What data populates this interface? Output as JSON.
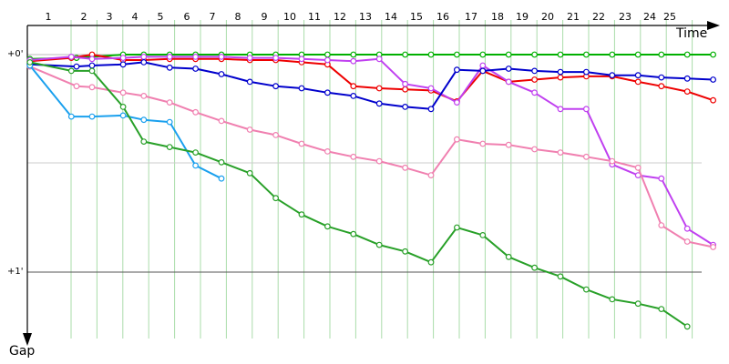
{
  "chart_data": {
    "type": "line",
    "title": "",
    "xlabel": "Time",
    "ylabel": "Gap",
    "x_ticks": [
      "1",
      "2",
      "3",
      "4",
      "5",
      "6",
      "7",
      "8",
      "9",
      "10",
      "11",
      "12",
      "13",
      "14",
      "15",
      "16",
      "17",
      "18",
      "19",
      "20",
      "21",
      "22",
      "23",
      "24",
      "25"
    ],
    "y_ticks": [
      "+0'",
      "+1'"
    ],
    "ylim": [
      0,
      1.25
    ],
    "grid": true,
    "legend": "none",
    "lap_grid_color": "#aadcaa",
    "series": [
      {
        "color": "#00b000",
        "points": [
          [
            0.1,
            0.02
          ],
          [
            1.9,
            0.015
          ],
          [
            3.7,
            0.0
          ],
          [
            4.5,
            0.0
          ],
          [
            5.5,
            0.0
          ],
          [
            6.5,
            0.0
          ],
          [
            7.5,
            0.0
          ],
          [
            8.6,
            0.0
          ],
          [
            9.6,
            0.0
          ],
          [
            10.6,
            0.0
          ],
          [
            11.6,
            0.0
          ],
          [
            12.6,
            0.0
          ],
          [
            13.6,
            0.0
          ],
          [
            14.6,
            0.0
          ],
          [
            15.6,
            0.0
          ],
          [
            16.6,
            0.0
          ],
          [
            17.6,
            0.0
          ],
          [
            18.6,
            0.0
          ],
          [
            19.6,
            0.0
          ],
          [
            20.6,
            0.0
          ],
          [
            21.6,
            0.0
          ],
          [
            22.6,
            0.0
          ],
          [
            23.6,
            0.0
          ],
          [
            24.5,
            0.0
          ],
          [
            25.5,
            0.0
          ],
          [
            26.5,
            0.0
          ]
        ]
      },
      {
        "color": "#ee0000",
        "points": [
          [
            0.1,
            0.03
          ],
          [
            1.7,
            0.015
          ],
          [
            2.5,
            0.0
          ],
          [
            3.7,
            0.025
          ],
          [
            4.5,
            0.025
          ],
          [
            5.5,
            0.02
          ],
          [
            6.5,
            0.02
          ],
          [
            7.5,
            0.02
          ],
          [
            8.6,
            0.025
          ],
          [
            9.6,
            0.025
          ],
          [
            10.6,
            0.035
          ],
          [
            11.6,
            0.045
          ],
          [
            12.6,
            0.145
          ],
          [
            13.6,
            0.155
          ],
          [
            14.6,
            0.16
          ],
          [
            15.6,
            0.165
          ],
          [
            16.6,
            0.215
          ],
          [
            17.6,
            0.075
          ],
          [
            18.6,
            0.125
          ],
          [
            19.6,
            0.115
          ],
          [
            20.6,
            0.105
          ],
          [
            21.6,
            0.1
          ],
          [
            22.6,
            0.1
          ],
          [
            23.6,
            0.125
          ],
          [
            24.5,
            0.145
          ],
          [
            25.5,
            0.17
          ],
          [
            26.5,
            0.21
          ]
        ]
      },
      {
        "color": "#c040f0",
        "points": [
          [
            0.1,
            0.025
          ],
          [
            1.7,
            0.01
          ],
          [
            2.5,
            0.02
          ],
          [
            3.7,
            0.015
          ],
          [
            4.5,
            0.01
          ],
          [
            5.5,
            0.01
          ],
          [
            6.5,
            0.01
          ],
          [
            7.5,
            0.01
          ],
          [
            8.6,
            0.015
          ],
          [
            9.6,
            0.015
          ],
          [
            10.6,
            0.02
          ],
          [
            11.6,
            0.025
          ],
          [
            12.6,
            0.03
          ],
          [
            13.6,
            0.02
          ],
          [
            14.6,
            0.135
          ],
          [
            15.6,
            0.155
          ],
          [
            16.6,
            0.22
          ],
          [
            17.6,
            0.05
          ],
          [
            18.6,
            0.125
          ],
          [
            19.6,
            0.175
          ],
          [
            20.6,
            0.25
          ],
          [
            21.6,
            0.25
          ],
          [
            22.6,
            0.505
          ],
          [
            23.6,
            0.555
          ],
          [
            24.5,
            0.57
          ],
          [
            25.5,
            0.8
          ],
          [
            26.5,
            0.875
          ]
        ]
      },
      {
        "color": "#0000cc",
        "points": [
          [
            0.1,
            0.045
          ],
          [
            1.9,
            0.055
          ],
          [
            2.5,
            0.05
          ],
          [
            3.7,
            0.045
          ],
          [
            4.5,
            0.035
          ],
          [
            5.5,
            0.06
          ],
          [
            6.5,
            0.065
          ],
          [
            7.5,
            0.09
          ],
          [
            8.6,
            0.125
          ],
          [
            9.6,
            0.145
          ],
          [
            10.6,
            0.155
          ],
          [
            11.6,
            0.175
          ],
          [
            12.6,
            0.19
          ],
          [
            13.6,
            0.225
          ],
          [
            14.6,
            0.24
          ],
          [
            15.6,
            0.25
          ],
          [
            16.6,
            0.07
          ],
          [
            17.6,
            0.075
          ],
          [
            18.6,
            0.065
          ],
          [
            19.6,
            0.075
          ],
          [
            20.6,
            0.08
          ],
          [
            21.6,
            0.08
          ],
          [
            22.6,
            0.095
          ],
          [
            23.6,
            0.095
          ],
          [
            24.5,
            0.105
          ],
          [
            25.5,
            0.11
          ],
          [
            26.5,
            0.115
          ]
        ]
      },
      {
        "color": "#f080b0",
        "points": [
          [
            0.1,
            0.055
          ],
          [
            1.9,
            0.145
          ],
          [
            2.5,
            0.15
          ],
          [
            3.7,
            0.175
          ],
          [
            4.5,
            0.19
          ],
          [
            5.5,
            0.22
          ],
          [
            6.5,
            0.265
          ],
          [
            7.5,
            0.305
          ],
          [
            8.6,
            0.345
          ],
          [
            9.6,
            0.37
          ],
          [
            10.6,
            0.41
          ],
          [
            11.6,
            0.445
          ],
          [
            12.6,
            0.47
          ],
          [
            13.6,
            0.49
          ],
          [
            14.6,
            0.52
          ],
          [
            15.6,
            0.555
          ],
          [
            16.6,
            0.39
          ],
          [
            17.6,
            0.41
          ],
          [
            18.6,
            0.415
          ],
          [
            19.6,
            0.435
          ],
          [
            20.6,
            0.45
          ],
          [
            21.6,
            0.47
          ],
          [
            22.6,
            0.49
          ],
          [
            23.6,
            0.52
          ],
          [
            24.5,
            0.785
          ],
          [
            25.5,
            0.86
          ],
          [
            26.5,
            0.885
          ]
        ]
      },
      {
        "color": "#1aa0ee",
        "points": [
          [
            0.1,
            0.05
          ],
          [
            1.7,
            0.285
          ],
          [
            2.5,
            0.285
          ],
          [
            3.7,
            0.28
          ],
          [
            4.5,
            0.3
          ],
          [
            5.5,
            0.31
          ],
          [
            6.5,
            0.51
          ],
          [
            7.5,
            0.57
          ]
        ]
      },
      {
        "color": "#28a028",
        "points": [
          [
            0.1,
            0.035
          ],
          [
            1.7,
            0.075
          ],
          [
            2.5,
            0.075
          ],
          [
            3.7,
            0.24
          ],
          [
            4.5,
            0.4
          ],
          [
            5.5,
            0.425
          ],
          [
            6.5,
            0.45
          ],
          [
            7.5,
            0.495
          ],
          [
            8.6,
            0.545
          ],
          [
            9.6,
            0.66
          ],
          [
            10.6,
            0.735
          ],
          [
            11.6,
            0.79
          ],
          [
            12.6,
            0.825
          ],
          [
            13.6,
            0.875
          ],
          [
            14.6,
            0.905
          ],
          [
            15.6,
            0.955
          ],
          [
            16.6,
            0.795
          ],
          [
            17.6,
            0.83
          ],
          [
            18.6,
            0.93
          ],
          [
            19.6,
            0.98
          ],
          [
            20.6,
            1.02
          ],
          [
            21.6,
            1.08
          ],
          [
            22.6,
            1.125
          ],
          [
            23.6,
            1.145
          ],
          [
            24.5,
            1.17
          ],
          [
            25.5,
            1.25
          ]
        ]
      }
    ]
  }
}
